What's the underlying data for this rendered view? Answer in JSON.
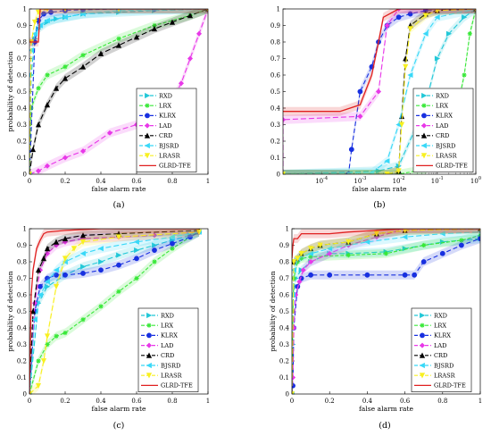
{
  "series_styles": [
    {
      "color": "#22c8d8",
      "marker": "tri-right",
      "dash": "6,3"
    },
    {
      "color": "#38e838",
      "marker": "star",
      "dash": "4,2"
    },
    {
      "color": "#1830e0",
      "marker": "circle",
      "dash": "5,3"
    },
    {
      "color": "#e838e8",
      "marker": "diamond",
      "dash": "6,3"
    },
    {
      "color": "#000000",
      "marker": "tri-up",
      "dash": "6,3"
    },
    {
      "color": "#38d8f8",
      "marker": "tri-left",
      "dash": "6,3"
    },
    {
      "color": "#f8f020",
      "marker": "tri-down",
      "dash": "6,3"
    },
    {
      "color": "#e02020",
      "marker": "none",
      "dash": ""
    }
  ],
  "chart_data": [
    {
      "type": "line",
      "caption": "(a)",
      "xlabel": "false alarm rate",
      "ylabel": "probability of detection",
      "xscale": "linear",
      "xlim": [
        0,
        1
      ],
      "ylim": [
        0,
        1
      ],
      "xticks": [
        "0",
        "0.2",
        "0.4",
        "0.6",
        "0.8",
        "1"
      ],
      "yticks": [
        "0",
        "0.1",
        "0.2",
        "0.3",
        "0.4",
        "0.5",
        "0.6",
        "0.7",
        "0.8",
        "0.9",
        "1"
      ],
      "legend_position": "bottom-right",
      "legend": [
        "RXD",
        "LRX",
        "KLRX",
        "LAD",
        "CRD",
        "BJSRD",
        "LRASR",
        "GLRD-TFE"
      ],
      "series": [
        {
          "name": "RXD",
          "x": [
            0,
            0.01,
            0.03,
            0.05,
            0.1,
            0.15,
            0.2,
            0.3,
            0.5,
            0.7,
            1
          ],
          "y": [
            0,
            0.6,
            0.82,
            0.88,
            0.92,
            0.94,
            0.95,
            0.97,
            0.98,
            0.99,
            1
          ]
        },
        {
          "name": "LRX",
          "x": [
            0,
            0.01,
            0.05,
            0.1,
            0.2,
            0.3,
            0.5,
            0.7,
            0.9,
            1
          ],
          "y": [
            0,
            0.4,
            0.52,
            0.6,
            0.65,
            0.72,
            0.82,
            0.9,
            0.96,
            1
          ]
        },
        {
          "name": "KLRX",
          "x": [
            0,
            0.03,
            0.05,
            0.08,
            0.12,
            0.2,
            0.3,
            0.5,
            0.7,
            1
          ],
          "y": [
            0,
            0.8,
            0.93,
            0.97,
            0.98,
            0.99,
            0.995,
            1,
            1,
            1
          ]
        },
        {
          "name": "LAD",
          "x": [
            0,
            0.05,
            0.1,
            0.2,
            0.3,
            0.45,
            0.6,
            0.7,
            0.8,
            0.85,
            0.9,
            0.95,
            1
          ],
          "y": [
            0,
            0.02,
            0.05,
            0.1,
            0.14,
            0.25,
            0.3,
            0.35,
            0.45,
            0.55,
            0.7,
            0.85,
            1
          ]
        },
        {
          "name": "CRD",
          "x": [
            0,
            0.02,
            0.05,
            0.1,
            0.15,
            0.2,
            0.3,
            0.4,
            0.5,
            0.6,
            0.7,
            0.8,
            0.9,
            1
          ],
          "y": [
            0,
            0.15,
            0.3,
            0.42,
            0.52,
            0.58,
            0.65,
            0.73,
            0.78,
            0.83,
            0.88,
            0.92,
            0.96,
            1
          ]
        },
        {
          "name": "BJSRD",
          "x": [
            0,
            0.01,
            0.03,
            0.06,
            0.1,
            0.2,
            0.3,
            0.5,
            1
          ],
          "y": [
            0,
            0.75,
            0.85,
            0.9,
            0.93,
            0.95,
            0.97,
            0.99,
            1
          ]
        },
        {
          "name": "LRASR",
          "x": [
            0,
            0.01,
            0.03,
            0.05,
            0.1,
            0.2,
            0.5,
            1
          ],
          "y": [
            0,
            0.8,
            0.92,
            0.98,
            1,
            1,
            1,
            1
          ]
        },
        {
          "name": "GLRD-TFE",
          "x": [
            0,
            0.005,
            0.05,
            0.06,
            0.1,
            0.5,
            1
          ],
          "y": [
            0.8,
            0.8,
            0.8,
            1,
            1,
            1,
            1
          ]
        }
      ]
    },
    {
      "type": "line",
      "caption": "(b)",
      "xlabel": "false alarm rate",
      "ylabel": "",
      "xscale": "log",
      "xlim": [
        1e-05,
        1
      ],
      "ylim": [
        0,
        1
      ],
      "xticks": [
        "10^-4",
        "10^-3",
        "10^-2",
        "10^-1",
        "10^0"
      ],
      "yticks": [
        "0",
        "0.1",
        "0.2",
        "0.3",
        "0.4",
        "0.5",
        "0.6",
        "0.7",
        "0.8",
        "0.9",
        "1"
      ],
      "legend_position": "bottom-right",
      "legend": [
        "RXD",
        "LRX",
        "KLRX",
        "LAD",
        "CRD",
        "BJSRD",
        "LRASR",
        "GLRD-TFE"
      ],
      "series": [
        {
          "name": "RXD",
          "x": [
            1e-05,
            0.003,
            0.01,
            0.03,
            0.06,
            0.1,
            0.2,
            0.5,
            1
          ],
          "y": [
            0,
            0.02,
            0.05,
            0.3,
            0.5,
            0.7,
            0.85,
            0.95,
            1
          ]
        },
        {
          "name": "LRX",
          "x": [
            1e-05,
            0.01,
            0.05,
            0.1,
            0.2,
            0.3,
            0.5,
            0.7,
            1
          ],
          "y": [
            0,
            0,
            0.03,
            0.08,
            0.18,
            0.35,
            0.6,
            0.85,
            1
          ]
        },
        {
          "name": "KLRX",
          "x": [
            1e-05,
            0.0005,
            0.0006,
            0.001,
            0.002,
            0.003,
            0.005,
            0.01,
            0.02,
            0.05,
            1
          ],
          "y": [
            0,
            0,
            0.15,
            0.5,
            0.65,
            0.8,
            0.9,
            0.95,
            0.97,
            0.99,
            1
          ]
        },
        {
          "name": "LAD",
          "x": [
            1e-05,
            1e-05,
            0.001,
            0.003,
            0.005,
            0.01,
            0.1,
            1
          ],
          "y": [
            0,
            0.33,
            0.35,
            0.5,
            0.9,
            1,
            1,
            1
          ]
        },
        {
          "name": "CRD",
          "x": [
            1e-05,
            0.005,
            0.01,
            0.012,
            0.015,
            0.02,
            0.05,
            0.1,
            1
          ],
          "y": [
            0,
            0,
            0.02,
            0.35,
            0.7,
            0.9,
            0.97,
            0.99,
            1
          ]
        },
        {
          "name": "BJSRD",
          "x": [
            1e-05,
            0.002,
            0.005,
            0.01,
            0.02,
            0.05,
            0.1,
            1
          ],
          "y": [
            0,
            0.01,
            0.08,
            0.3,
            0.6,
            0.85,
            0.95,
            1
          ]
        },
        {
          "name": "LRASR",
          "x": [
            1e-05,
            0.005,
            0.01,
            0.012,
            0.015,
            0.02,
            0.05,
            0.1,
            1
          ],
          "y": [
            0,
            0,
            0.02,
            0.3,
            0.65,
            0.88,
            0.96,
            0.99,
            1
          ]
        },
        {
          "name": "GLRD-TFE",
          "x": [
            1e-05,
            0.0003,
            0.001,
            0.002,
            0.003,
            0.004,
            0.01,
            0.1,
            1
          ],
          "y": [
            0.38,
            0.38,
            0.42,
            0.6,
            0.8,
            0.95,
            1,
            1,
            1
          ]
        }
      ]
    },
    {
      "type": "line",
      "caption": "(c)",
      "xlabel": "false alarm rate",
      "ylabel": "probability of detection",
      "xscale": "linear",
      "xlim": [
        0,
        1
      ],
      "ylim": [
        0,
        1
      ],
      "xticks": [
        "0",
        "0.2",
        "0.4",
        "0.6",
        "0.8",
        "1"
      ],
      "yticks": [
        "0",
        "0.1",
        "0.2",
        "0.3",
        "0.4",
        "0.5",
        "0.6",
        "0.7",
        "0.8",
        "0.9",
        "1"
      ],
      "legend_position": "bottom-right",
      "legend": [
        "RXD",
        "LRX",
        "KLRX",
        "LAD",
        "CRD",
        "BJSRD",
        "LRASR",
        "GLRD-TFE"
      ],
      "series": [
        {
          "name": "RXD",
          "x": [
            0,
            0.05,
            0.1,
            0.2,
            0.3,
            0.4,
            0.5,
            0.6,
            0.7,
            0.8,
            0.9,
            0.95
          ],
          "y": [
            0,
            0.55,
            0.65,
            0.72,
            0.77,
            0.8,
            0.84,
            0.87,
            0.9,
            0.93,
            0.96,
            0.98
          ]
        },
        {
          "name": "LRX",
          "x": [
            0,
            0.05,
            0.1,
            0.15,
            0.2,
            0.3,
            0.4,
            0.5,
            0.6,
            0.7,
            0.8,
            0.9,
            0.95
          ],
          "y": [
            0,
            0.2,
            0.3,
            0.35,
            0.37,
            0.45,
            0.53,
            0.62,
            0.7,
            0.8,
            0.88,
            0.95,
            0.98
          ]
        },
        {
          "name": "KLRX",
          "x": [
            0,
            0.03,
            0.06,
            0.1,
            0.15,
            0.2,
            0.3,
            0.4,
            0.5,
            0.6,
            0.7,
            0.8,
            0.9,
            0.95
          ],
          "y": [
            0,
            0.5,
            0.65,
            0.7,
            0.72,
            0.72,
            0.73,
            0.75,
            0.78,
            0.82,
            0.87,
            0.91,
            0.95,
            0.98
          ]
        },
        {
          "name": "LAD",
          "x": [
            0,
            0.03,
            0.06,
            0.1,
            0.15,
            0.2,
            0.3,
            0.5,
            0.7,
            0.95
          ],
          "y": [
            0,
            0.55,
            0.75,
            0.85,
            0.9,
            0.92,
            0.94,
            0.95,
            0.96,
            0.98
          ]
        },
        {
          "name": "CRD",
          "x": [
            0,
            0.02,
            0.05,
            0.08,
            0.1,
            0.15,
            0.2,
            0.3,
            0.5,
            0.95
          ],
          "y": [
            0,
            0.5,
            0.75,
            0.82,
            0.88,
            0.92,
            0.94,
            0.96,
            0.97,
            0.99
          ]
        },
        {
          "name": "BJSRD",
          "x": [
            0,
            0.03,
            0.06,
            0.1,
            0.15,
            0.2,
            0.3,
            0.4,
            0.6,
            0.8,
            0.95
          ],
          "y": [
            0,
            0.45,
            0.6,
            0.68,
            0.75,
            0.8,
            0.85,
            0.88,
            0.92,
            0.95,
            0.98
          ]
        },
        {
          "name": "LRASR",
          "x": [
            0,
            0.05,
            0.08,
            0.1,
            0.15,
            0.2,
            0.25,
            0.3,
            0.5,
            0.95
          ],
          "y": [
            0,
            0.05,
            0.2,
            0.35,
            0.65,
            0.82,
            0.88,
            0.92,
            0.95,
            0.98
          ]
        },
        {
          "name": "GLRD-TFE",
          "x": [
            0,
            0.01,
            0.02,
            0.04,
            0.06,
            0.08,
            0.1,
            0.2,
            0.4,
            0.6,
            0.95
          ],
          "y": [
            0,
            0.6,
            0.75,
            0.88,
            0.93,
            0.97,
            0.98,
            0.99,
            1,
            1,
            1
          ]
        }
      ]
    },
    {
      "type": "line",
      "caption": "(d)",
      "xlabel": "false alarm rate",
      "ylabel": "probability of detection",
      "xscale": "linear",
      "xlim": [
        0,
        1
      ],
      "ylim": [
        0,
        1
      ],
      "xticks": [
        "0",
        "0.2",
        "0.4",
        "0.6",
        "0.8",
        "1"
      ],
      "yticks": [
        "0",
        "0.1",
        "0.2",
        "0.3",
        "0.4",
        "0.5",
        "0.6",
        "0.7",
        "0.8",
        "0.9",
        "1"
      ],
      "legend_position": "bottom-right",
      "legend": [
        "RXD",
        "LRX",
        "KLRX",
        "LAD",
        "CRD",
        "BJSRD",
        "LRASR",
        "GLRD-TFE"
      ],
      "series": [
        {
          "name": "RXD",
          "x": [
            0,
            0.005,
            0.01,
            0.02,
            0.05,
            0.1,
            0.2,
            0.3,
            0.5,
            0.6,
            0.8,
            1
          ],
          "y": [
            0,
            0.3,
            0.6,
            0.7,
            0.75,
            0.8,
            0.85,
            0.85,
            0.86,
            0.88,
            0.92,
            0.94
          ]
        },
        {
          "name": "LRX",
          "x": [
            0,
            0.005,
            0.01,
            0.03,
            0.05,
            0.1,
            0.3,
            0.5,
            0.7,
            0.9,
            1
          ],
          "y": [
            0,
            0.5,
            0.7,
            0.8,
            0.82,
            0.83,
            0.84,
            0.85,
            0.9,
            0.93,
            0.96
          ]
        },
        {
          "name": "KLRX",
          "x": [
            0,
            0.005,
            0.01,
            0.03,
            0.05,
            0.1,
            0.2,
            0.4,
            0.6,
            0.65,
            0.7,
            0.8,
            0.9,
            1
          ],
          "y": [
            0,
            0.05,
            0.4,
            0.65,
            0.7,
            0.72,
            0.72,
            0.72,
            0.72,
            0.72,
            0.8,
            0.85,
            0.9,
            0.94
          ]
        },
        {
          "name": "LAD",
          "x": [
            0,
            0.005,
            0.01,
            0.02,
            0.04,
            0.06,
            0.1,
            0.2,
            0.3,
            0.45,
            0.6,
            1
          ],
          "y": [
            0,
            0.1,
            0.4,
            0.6,
            0.68,
            0.75,
            0.8,
            0.85,
            0.9,
            0.95,
            1,
            1
          ]
        },
        {
          "name": "CRD",
          "x": [
            0,
            0.01,
            0.03,
            0.05,
            0.1,
            0.15,
            0.3,
            0.45,
            0.6,
            1
          ],
          "y": [
            0,
            0.8,
            0.82,
            0.85,
            0.88,
            0.9,
            0.92,
            0.97,
            0.99,
            1
          ]
        },
        {
          "name": "BJSRD",
          "x": [
            0,
            0.005,
            0.01,
            0.03,
            0.1,
            0.2,
            0.4,
            0.6,
            0.8,
            1
          ],
          "y": [
            0,
            0.6,
            0.75,
            0.82,
            0.85,
            0.88,
            0.92,
            0.95,
            0.97,
            0.98
          ]
        },
        {
          "name": "LRASR",
          "x": [
            0,
            0.01,
            0.03,
            0.05,
            0.1,
            0.15,
            0.3,
            0.45,
            0.6,
            1
          ],
          "y": [
            0,
            0.8,
            0.82,
            0.85,
            0.88,
            0.9,
            0.92,
            0.97,
            0.99,
            1
          ]
        },
        {
          "name": "GLRD-TFE",
          "x": [
            0,
            0.005,
            0.01,
            0.03,
            0.05,
            0.2,
            0.3,
            0.6,
            1
          ],
          "y": [
            0.82,
            0.9,
            0.94,
            0.94,
            0.97,
            0.97,
            0.98,
            1,
            1
          ]
        }
      ]
    }
  ]
}
